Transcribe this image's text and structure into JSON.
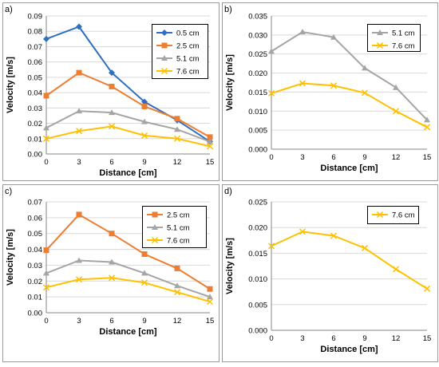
{
  "figure": {
    "panels": [
      {
        "label": "a)",
        "xlabel": "Distance [cm]",
        "ylabel": "Velocity [m/s]",
        "yticks": [
          "0.00",
          "0.01",
          "0.02",
          "0.03",
          "0.04",
          "0.05",
          "0.06",
          "0.07",
          "0.08",
          "0.09"
        ],
        "xticks": [
          "0",
          "3",
          "6",
          "9",
          "12",
          "15"
        ],
        "legend": [
          "0.5 cm",
          "2.5 cm",
          "5.1 cm",
          "7.6 cm"
        ]
      },
      {
        "label": "b)",
        "xlabel": "Distance [cm]",
        "ylabel": "Velocity [m/s]",
        "yticks": [
          "0.000",
          "0.005",
          "0.010",
          "0.015",
          "0.020",
          "0.025",
          "0.030",
          "0.035"
        ],
        "xticks": [
          "0",
          "3",
          "6",
          "9",
          "12",
          "15"
        ],
        "legend": [
          "5.1 cm",
          "7.6 cm"
        ]
      },
      {
        "label": "c)",
        "xlabel": "Distance [cm]",
        "ylabel": "Velocity [m/s]",
        "yticks": [
          "0.00",
          "0.01",
          "0.02",
          "0.03",
          "0.04",
          "0.05",
          "0.06",
          "0.07"
        ],
        "xticks": [
          "0",
          "3",
          "6",
          "9",
          "12",
          "15"
        ],
        "legend": [
          "2.5 cm",
          "5.1 cm",
          "7.6 cm"
        ]
      },
      {
        "label": "d)",
        "xlabel": "Distance [cm]",
        "ylabel": "Velocity [m/s]",
        "yticks": [
          "0.000",
          "0.005",
          "0.010",
          "0.015",
          "0.020",
          "0.025"
        ],
        "xticks": [
          "0",
          "3",
          "6",
          "9",
          "12",
          "15"
        ],
        "legend": [
          "7.6 cm"
        ]
      }
    ]
  },
  "colors": {
    "0.5 cm": "#2e6fc0",
    "2.5 cm": "#ed7d31",
    "5.1 cm": "#a5a5a5",
    "7.6 cm": "#ffc000"
  },
  "markers": {
    "0.5 cm": "diamond",
    "2.5 cm": "square",
    "5.1 cm": "triangle",
    "7.6 cm": "x"
  },
  "chart_data": [
    {
      "type": "line",
      "title": "",
      "xlabel": "Distance [cm]",
      "ylabel": "Velocity [m/s]",
      "x": [
        0,
        3,
        6,
        9,
        12,
        15
      ],
      "xlim": [
        0,
        15
      ],
      "ylim": [
        0,
        0.09
      ],
      "grid": true,
      "legend": "top-right",
      "series": [
        {
          "name": "0.5 cm",
          "values": [
            0.075,
            0.083,
            0.053,
            0.034,
            0.022,
            0.008
          ]
        },
        {
          "name": "2.5 cm",
          "values": [
            0.038,
            0.053,
            0.044,
            0.031,
            0.023,
            0.011
          ]
        },
        {
          "name": "5.1 cm",
          "values": [
            0.017,
            0.028,
            0.027,
            0.021,
            0.016,
            0.008
          ]
        },
        {
          "name": "7.6 cm",
          "values": [
            0.01,
            0.015,
            0.018,
            0.012,
            0.01,
            0.005
          ]
        }
      ]
    },
    {
      "type": "line",
      "title": "",
      "xlabel": "Distance [cm]",
      "ylabel": "Velocity [m/s]",
      "x": [
        0,
        3,
        6,
        9,
        12,
        15
      ],
      "xlim": [
        0,
        15
      ],
      "ylim": [
        0,
        0.035
      ],
      "grid": true,
      "legend": "top-right",
      "series": [
        {
          "name": "5.1 cm",
          "values": [
            0.0257,
            0.0308,
            0.0294,
            0.0213,
            0.0162,
            0.0077
          ]
        },
        {
          "name": "7.6 cm",
          "values": [
            0.0147,
            0.0173,
            0.0167,
            0.0148,
            0.01,
            0.0058
          ]
        }
      ]
    },
    {
      "type": "line",
      "title": "",
      "xlabel": "Distance [cm]",
      "ylabel": "Velocity [m/s]",
      "x": [
        0,
        3,
        6,
        9,
        12,
        15
      ],
      "xlim": [
        0,
        15
      ],
      "ylim": [
        0,
        0.07
      ],
      "grid": true,
      "legend": "top-right",
      "series": [
        {
          "name": "2.5 cm",
          "values": [
            0.0395,
            0.062,
            0.05,
            0.037,
            0.028,
            0.015
          ]
        },
        {
          "name": "5.1 cm",
          "values": [
            0.025,
            0.033,
            0.032,
            0.025,
            0.017,
            0.01
          ]
        },
        {
          "name": "7.6 cm",
          "values": [
            0.016,
            0.021,
            0.022,
            0.019,
            0.013,
            0.007
          ]
        }
      ]
    },
    {
      "type": "line",
      "title": "",
      "xlabel": "Distance [cm]",
      "ylabel": "Velocity [m/s]",
      "x": [
        0,
        3,
        6,
        9,
        12,
        15
      ],
      "xlim": [
        0,
        15
      ],
      "ylim": [
        0,
        0.025
      ],
      "grid": true,
      "legend": "top-right",
      "series": [
        {
          "name": "7.6 cm",
          "values": [
            0.0164,
            0.0192,
            0.0184,
            0.016,
            0.0119,
            0.0081
          ]
        }
      ]
    }
  ]
}
